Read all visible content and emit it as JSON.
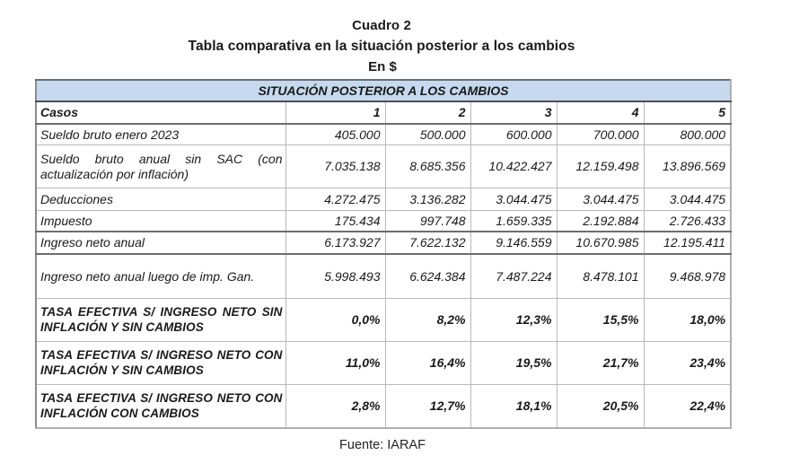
{
  "header": {
    "title": "Cuadro 2",
    "subtitle": "Tabla comparativa en la situación posterior a los cambios",
    "unit": "En $"
  },
  "table": {
    "band_title": "SITUACIÓN POSTERIOR A LOS CAMBIOS",
    "columns": [
      "Casos",
      "1",
      "2",
      "3",
      "4",
      "5"
    ],
    "rows": [
      {
        "label": "Sueldo bruto enero 2023",
        "values": [
          "405.000",
          "500.000",
          "600.000",
          "700.000",
          "800.000"
        ]
      },
      {
        "label": "Sueldo bruto anual sin SAC (con actualización por inflación)",
        "values": [
          "7.035.138",
          "8.685.356",
          "10.422.427",
          "12.159.498",
          "13.896.569"
        ]
      },
      {
        "label": "Deducciones",
        "values": [
          "4.272.475",
          "3.136.282",
          "3.044.475",
          "3.044.475",
          "3.044.475"
        ]
      },
      {
        "label": "Impuesto",
        "values": [
          "175.434",
          "997.748",
          "1.659.335",
          "2.192.884",
          "2.726.433"
        ]
      },
      {
        "label": "Ingreso neto anual",
        "values": [
          "6.173.927",
          "7.622.132",
          "9.146.559",
          "10.670.985",
          "12.195.411"
        ]
      },
      {
        "label": "Ingreso neto anual luego de imp. Gan.",
        "values": [
          "5.998.493",
          "6.624.384",
          "7.487.224",
          "8.478.101",
          "9.468.978"
        ]
      },
      {
        "label": "TASA EFECTIVA S/ INGRESO NETO SIN INFLACIÓN Y SIN CAMBIOS",
        "values": [
          "0,0%",
          "8,2%",
          "12,3%",
          "15,5%",
          "18,0%"
        ]
      },
      {
        "label": "TASA EFECTIVA S/ INGRESO NETO CON INFLACIÓN Y SIN CAMBIOS",
        "values": [
          "11,0%",
          "16,4%",
          "19,5%",
          "21,7%",
          "23,4%"
        ]
      },
      {
        "label": "TASA EFECTIVA S/ INGRESO NETO CON INFLACIÓN CON CAMBIOS",
        "values": [
          "2,8%",
          "12,7%",
          "18,1%",
          "20,5%",
          "22,4%"
        ]
      }
    ]
  },
  "footer": {
    "source": "Fuente: IARAF"
  },
  "colors": {
    "band_background": "#c6d9ef",
    "grid_line": "#b9b9b9",
    "heavy_line": "#6d6d6d"
  }
}
